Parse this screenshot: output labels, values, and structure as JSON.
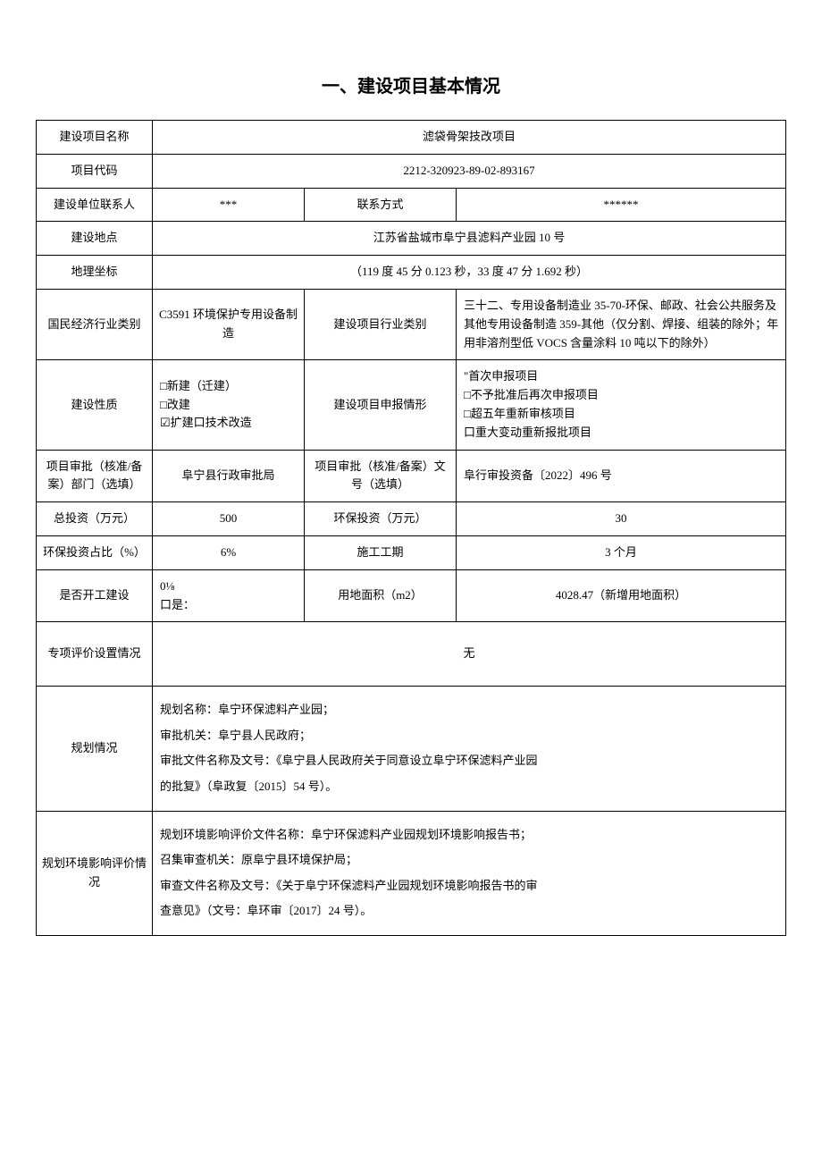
{
  "title": "一、建设项目基本情况",
  "rows": {
    "projectName": {
      "label": "建设项目名称",
      "value": "滤袋骨架技改项目"
    },
    "projectCode": {
      "label": "项目代码",
      "value": "2212-320923-89-02-893167"
    },
    "contactPerson": {
      "label": "建设单位联系人",
      "value": "***"
    },
    "contactMethod": {
      "label": "联系方式",
      "value": "******"
    },
    "location": {
      "label": "建设地点",
      "value": "江苏省盐城市阜宁县滤料产业园 10 号"
    },
    "coordinates": {
      "label": "地理坐标",
      "value": "（119 度 45 分 0.123 秒，33 度 47 分 1.692 秒）"
    },
    "industryCategory": {
      "label": "国民经济行业类别",
      "value": "C3591 环境保护专用设备制造"
    },
    "projectIndustry": {
      "label": "建设项目行业类别",
      "value": "三十二、专用设备制造业 35-70-环保、邮政、社会公共服务及其他专用设备制造 359-其他（仅分割、焊接、组装的除外；年用非溶剂型低 VOCS 含量涂料 10 吨以下的除外）"
    },
    "constructionNature": {
      "label": "建设性质",
      "value": "□新建（迁建）\n□改建\n☑扩建口技术改造"
    },
    "declarationType": {
      "label": "建设项目申报情形",
      "value": "\"首次申报项目\n□不予批准后再次申报项目\n□超五年重新审核项目\n口重大变动重新报批项目"
    },
    "approvalDept": {
      "label": "项目审批（核准/备案）部门（选填）",
      "value": "阜宁县行政审批局"
    },
    "approvalNumber": {
      "label": "项目审批（核准/备案）文号（选填）",
      "value": "阜行审投资备〔2022〕496 号"
    },
    "totalInvestment": {
      "label": "总投资（万元）",
      "value": "500"
    },
    "envInvestment": {
      "label": "环保投资（万元）",
      "value": "30"
    },
    "envInvestmentRatio": {
      "label": "环保投资占比（%）",
      "value": "6%"
    },
    "constructionPeriod": {
      "label": "施工工期",
      "value": "3 个月"
    },
    "constructionStarted": {
      "label": "是否开工建设",
      "value": "0⅛\n口是："
    },
    "landArea": {
      "label": "用地面积（m2）",
      "value": "4028.47（新增用地面积）"
    },
    "specialEval": {
      "label": "专项评价设置情况",
      "value": "无"
    },
    "planning": {
      "label": "规划情况",
      "value": "规划名称：阜宁环保滤料产业园；\n审批机关：阜宁县人民政府；\n审批文件名称及文号：《阜宁县人民政府关于同意设立阜宁环保滤料产业园\n的批复》（阜政复〔2015〕54 号）。"
    },
    "planningEnvEval": {
      "label": "规划环境影响评价情况",
      "value": "规划环境影响评价文件名称：阜宁环保滤料产业园规划环境影响报告书；\n召集审查机关：原阜宁县环境保护局；\n审查文件名称及文号：《关于阜宁环保滤料产业园规划环境影响报告书的审\n查意见》（文号：阜环审〔2017〕24 号）。"
    }
  },
  "styling": {
    "background_color": "#ffffff",
    "text_color": "#000000",
    "border_color": "#000000",
    "title_fontsize": 20,
    "body_fontsize": 13,
    "font_family": "SimSun"
  }
}
